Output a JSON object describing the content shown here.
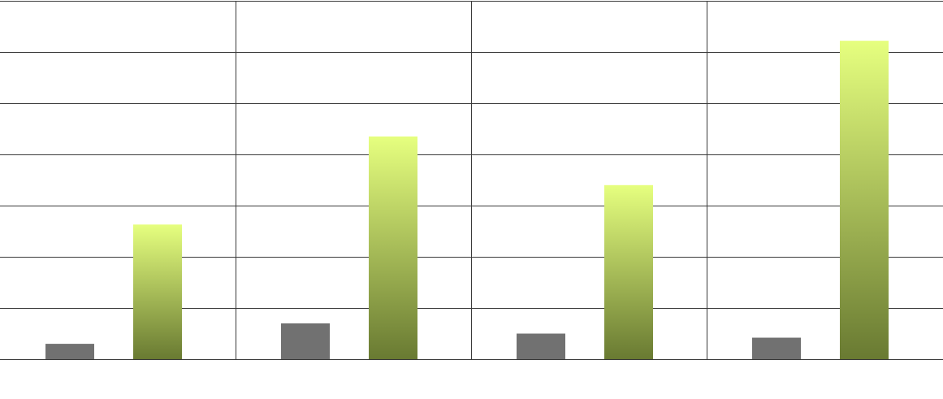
{
  "chart_data": {
    "type": "bar",
    "title": "",
    "xlabel": "",
    "ylabel": "",
    "categories": [
      "",
      "",
      "",
      ""
    ],
    "ylim": [
      0,
      7
    ],
    "grid": true,
    "series": [
      {
        "values": [
          0.3,
          0.7,
          0.5,
          0.42
        ],
        "color": "#717171"
      },
      {
        "values": [
          2.63,
          4.35,
          3.4,
          6.22
        ],
        "color_top": "#e6ff7f",
        "color_bottom": "#697a32"
      }
    ]
  }
}
